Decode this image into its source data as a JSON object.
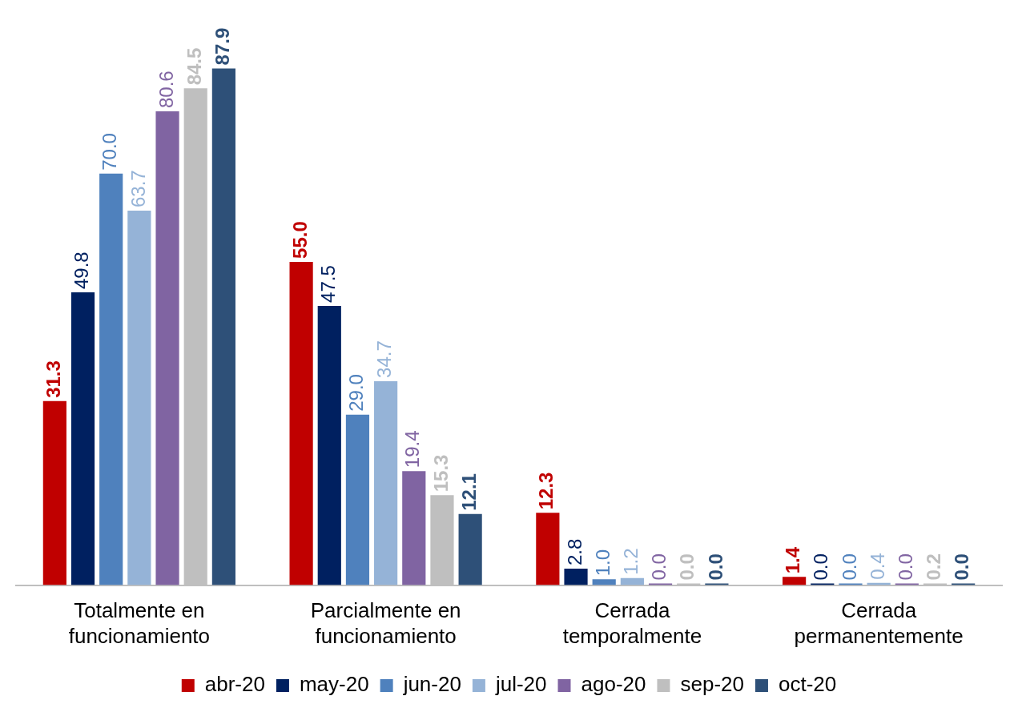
{
  "chart_data": {
    "type": "bar",
    "categories": [
      "Totalmente en funcionamiento",
      "Parcialmente en funcionamiento",
      "Cerrada temporalmente",
      "Cerrada permanentemente"
    ],
    "series": [
      {
        "name": "abr-20",
        "color": "#c00000",
        "values": [
          31.3,
          55.0,
          12.3,
          1.4
        ],
        "value_labels": [
          "31.3",
          "55.0",
          "12.3",
          "1.4"
        ]
      },
      {
        "name": "may-20",
        "color": "#002060",
        "values": [
          49.8,
          47.5,
          2.8,
          0.0
        ],
        "value_labels": [
          "49.8",
          "47.5",
          "2.8",
          "0.0"
        ]
      },
      {
        "name": "jun-20",
        "color": "#4f81bd",
        "values": [
          70.0,
          29.0,
          1.0,
          0.0
        ],
        "value_labels": [
          "70.0",
          "29.0",
          "1.0",
          "0.0"
        ]
      },
      {
        "name": "jul-20",
        "color": "#95b3d7",
        "values": [
          63.7,
          34.7,
          1.2,
          0.4
        ],
        "value_labels": [
          "63.7",
          "34.7",
          "1.2",
          "0.4"
        ]
      },
      {
        "name": "ago-20",
        "color": "#8064a2",
        "values": [
          80.6,
          19.4,
          0.0,
          0.0
        ],
        "value_labels": [
          "80.6",
          "19.4",
          "0.0",
          "0.0"
        ]
      },
      {
        "name": "sep-20",
        "color": "#bfbfbf",
        "values": [
          84.5,
          15.3,
          0.0,
          0.2
        ],
        "value_labels": [
          "84.5",
          "15.3",
          "0.0",
          "0.2"
        ]
      },
      {
        "name": "oct-20",
        "color": "#2e5078",
        "values": [
          87.9,
          12.1,
          0.0,
          0.0
        ],
        "value_labels": [
          "87.9",
          "12.1",
          "0.0",
          "0.0"
        ]
      }
    ],
    "grid": false,
    "legend": "bottom"
  }
}
